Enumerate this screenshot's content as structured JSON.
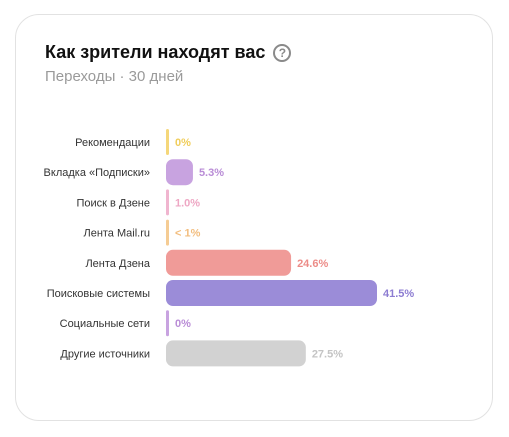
{
  "header": {
    "title": "Как зрители находят вас",
    "help_icon": "question-circle-icon",
    "help_glyph": "?",
    "subtitle": "Переходы · 30 дней"
  },
  "chart_data": {
    "type": "bar",
    "orientation": "horizontal",
    "grid": false,
    "legend": "none",
    "xlim": [
      0,
      41.5
    ],
    "categories": [
      "Рекомендации",
      "Вкладка «Подписки»",
      "Поиск в Дзене",
      "Лента Mail.ru",
      "Лента Дзена",
      "Поисковые системы",
      "Социальные сети",
      "Другие источники"
    ],
    "values": [
      0,
      5.3,
      1.0,
      0.5,
      24.6,
      41.5,
      0,
      27.5
    ],
    "data_labels": [
      "0%",
      "5.3%",
      "1.0%",
      "< 1%",
      "24.6%",
      "41.5%",
      "0%",
      "27.5%"
    ],
    "colors": [
      "#f5d77a",
      "#c8a3e0",
      "#f0b5cf",
      "#f5cc94",
      "#f09b98",
      "#9b8cd8",
      "#c8a3e0",
      "#d2d2d2"
    ],
    "label_colors": [
      "#f0cd5a",
      "#b98cd6",
      "#eea7c4",
      "#f2bd7e",
      "#ec8c88",
      "#8d7dd2",
      "#b98cd6",
      "#c4c4c4"
    ]
  }
}
